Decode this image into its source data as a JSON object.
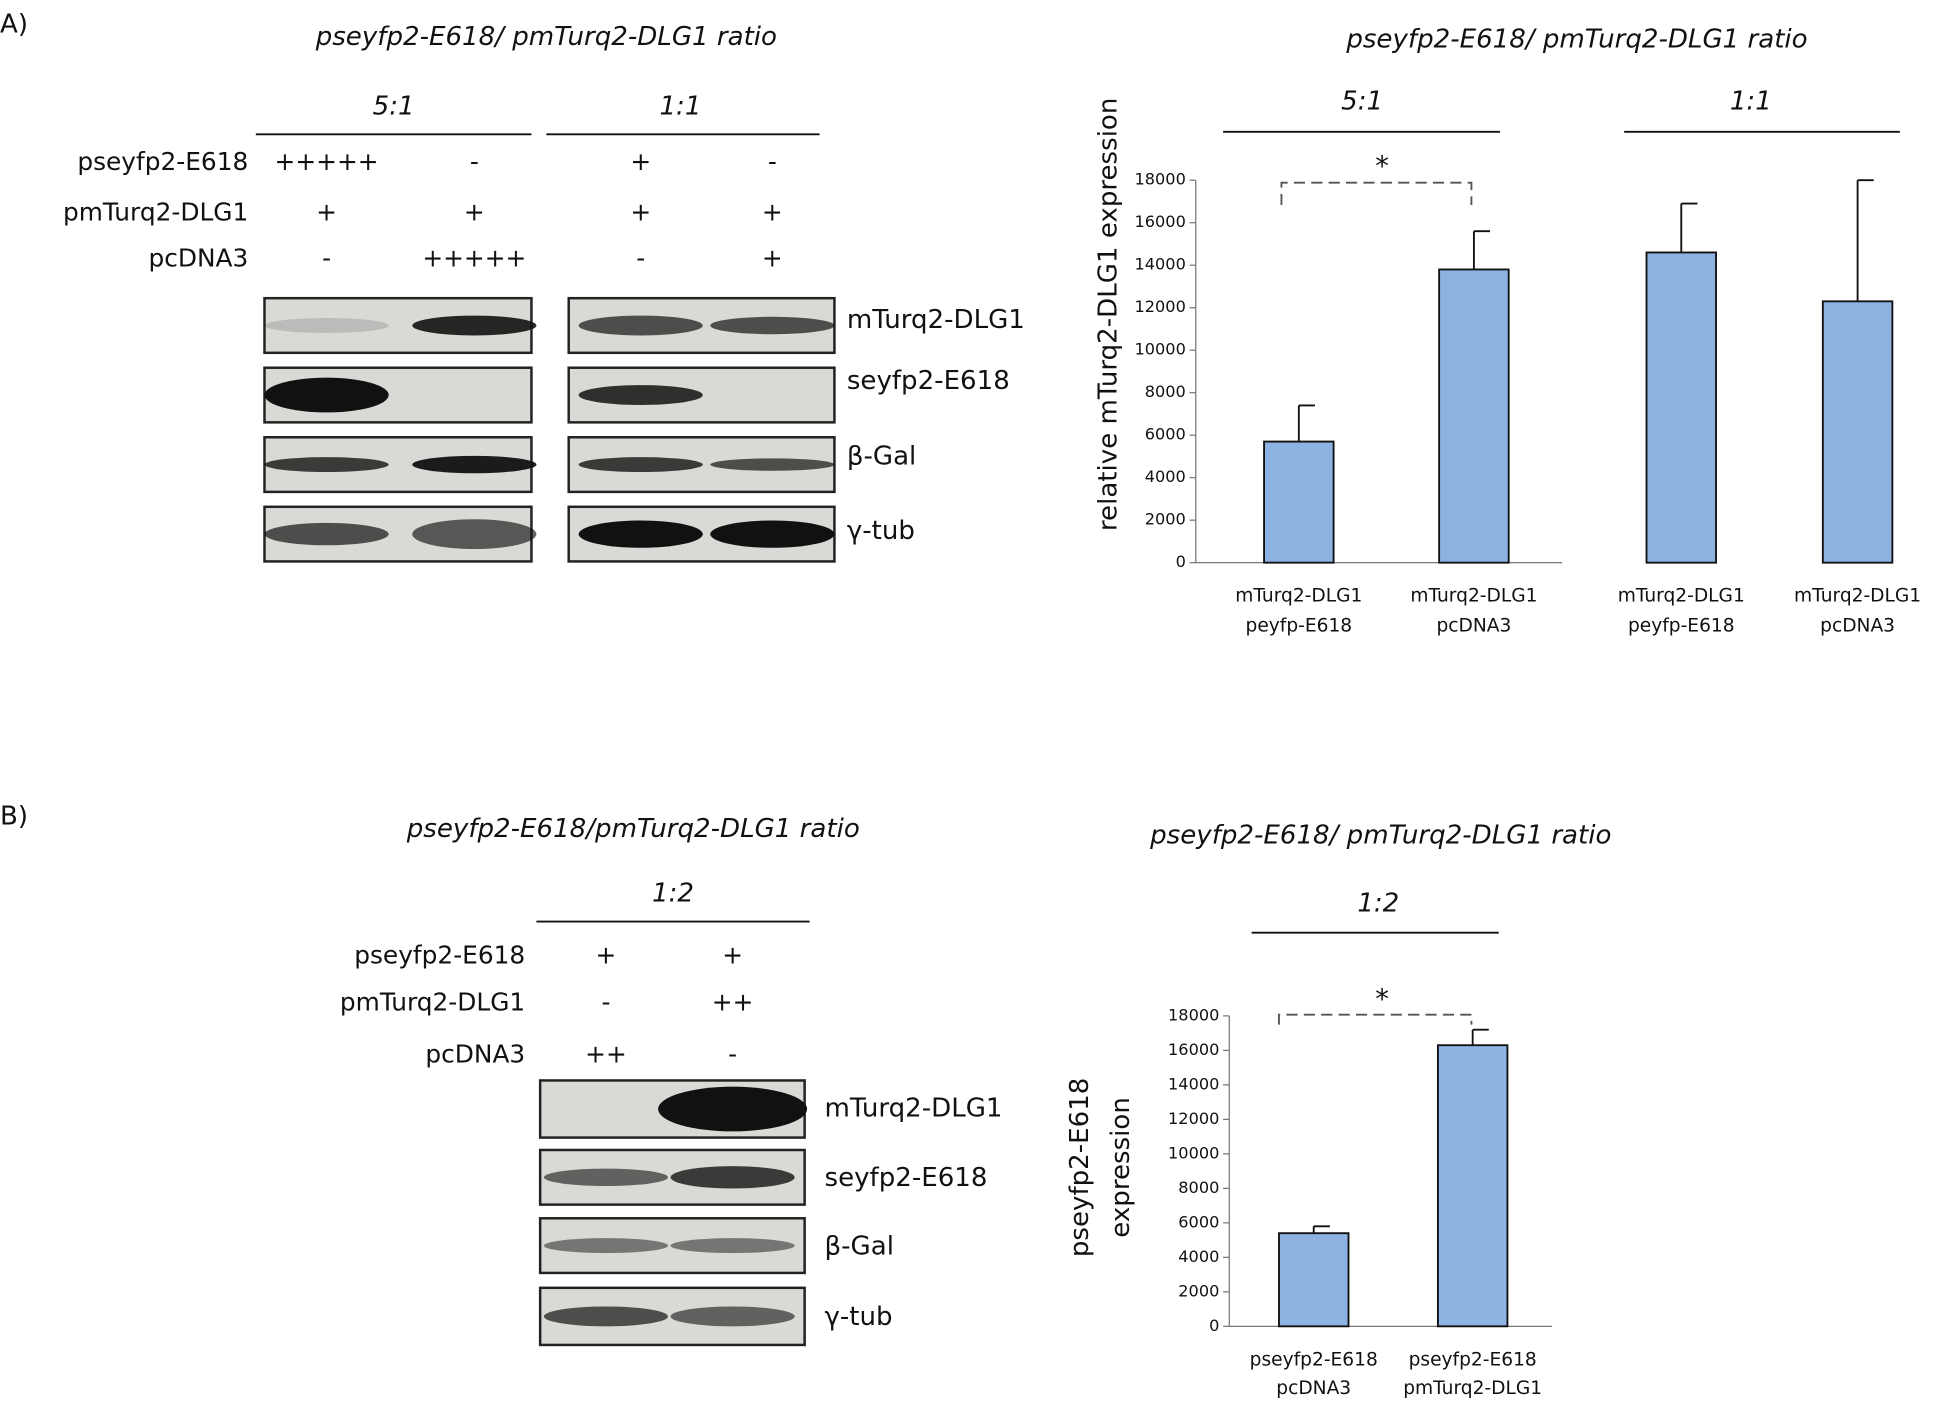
{
  "blots": [
    {
      "label": "A)",
      "title": "pseyfp2-E618/ pmTurq2-DLG1 ratio",
      "ratios": [
        "5:1",
        "1:1"
      ],
      "rows": [
        {
          "name": "pseyfp2-E618",
          "signs": [
            "+++++",
            "-",
            "+",
            "-"
          ]
        },
        {
          "name": "pmTurq2-DLG1",
          "signs": [
            "+",
            "+",
            "+",
            "+"
          ]
        },
        {
          "name": "pcDNA3",
          "signs": [
            "-",
            "+++++",
            "-",
            "+"
          ]
        }
      ],
      "bands": [
        "mTurq2-DLG1",
        "seyfp2-E618",
        "β-Gal",
        "γ-tub"
      ]
    },
    {
      "label": "B)",
      "title": "pseyfp2-E618/pmTurq2-DLG1 ratio",
      "ratios": [
        "1:2"
      ],
      "rows": [
        {
          "name": "pseyfp2-E618",
          "signs": [
            "+",
            "+"
          ]
        },
        {
          "name": "pmTurq2-DLG1",
          "signs": [
            "-",
            "++"
          ]
        },
        {
          "name": "pcDNA3",
          "signs": [
            "++",
            "-"
          ]
        }
      ],
      "bands": [
        "mTurq2-DLG1",
        "seyfp2-E618",
        "β-Gal",
        "γ-tub"
      ]
    }
  ],
  "chart_data": [
    {
      "type": "bar",
      "title": "pseyfp2-E618/ pmTurq2-DLG1 ratio",
      "groups": [
        "5:1",
        "1:1"
      ],
      "ylabel": [
        "relative mTurq2-DLG1  expression"
      ],
      "categories": [
        [
          "mTurq2-DLG1",
          "peyfp-E618"
        ],
        [
          "mTurq2-DLG1",
          "pcDNA3"
        ],
        [
          "mTurq2-DLG1",
          "peyfp-E618"
        ],
        [
          "mTurq2-DLG1",
          "pcDNA3"
        ]
      ],
      "values": [
        5700,
        13800,
        14600,
        12300
      ],
      "errors": [
        1700,
        1800,
        2300,
        5700
      ],
      "color": "#8db3e2",
      "ylim": [
        0,
        18000
      ],
      "yticks": [
        0,
        2000,
        4000,
        6000,
        8000,
        10000,
        12000,
        14000,
        16000,
        18000
      ],
      "annotations": [
        "*"
      ]
    },
    {
      "type": "bar",
      "title": "pseyfp2-E618/ pmTurq2-DLG1 ratio",
      "groups": [
        "1:2"
      ],
      "ylabel": [
        "pseyfp2-E618",
        "expression"
      ],
      "categories": [
        [
          "pseyfp2-E618",
          "pcDNA3"
        ],
        [
          "pseyfp2-E618",
          "pmTurq2-DLG1"
        ]
      ],
      "values": [
        5400,
        16300
      ],
      "errors": [
        400,
        900
      ],
      "color": "#8db3e2",
      "ylim": [
        0,
        18000
      ],
      "yticks": [
        0,
        2000,
        4000,
        6000,
        8000,
        10000,
        12000,
        14000,
        16000,
        18000
      ],
      "annotations": [
        "*"
      ]
    }
  ]
}
